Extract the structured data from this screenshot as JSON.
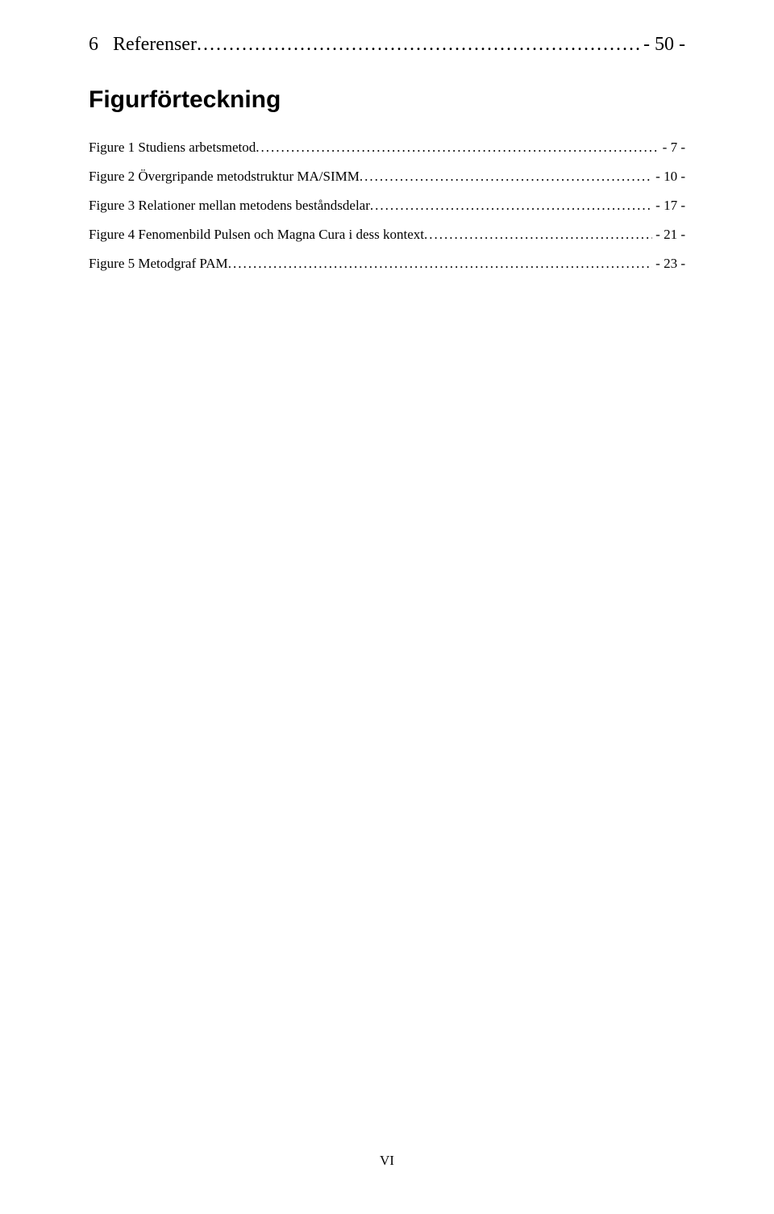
{
  "section": {
    "number": "6",
    "title": "Referenser",
    "page": "- 50 -"
  },
  "heading": "Figurförteckning",
  "figures": [
    {
      "label": "Figure 1 Studiens arbetsmetod",
      "page": "- 7 -"
    },
    {
      "label": "Figure 2 Övergripande metodstruktur MA/SIMM",
      "page": "- 10 -"
    },
    {
      "label": "Figure 3 Relationer mellan metodens beståndsdelar",
      "page": "- 17 -"
    },
    {
      "label": "Figure 4 Fenomenbild Pulsen och Magna Cura i dess kontext",
      "page": "- 21 -"
    },
    {
      "label": "Figure 5 Metodgraf PAM",
      "page": "- 23 -"
    }
  ],
  "footer": "VI"
}
